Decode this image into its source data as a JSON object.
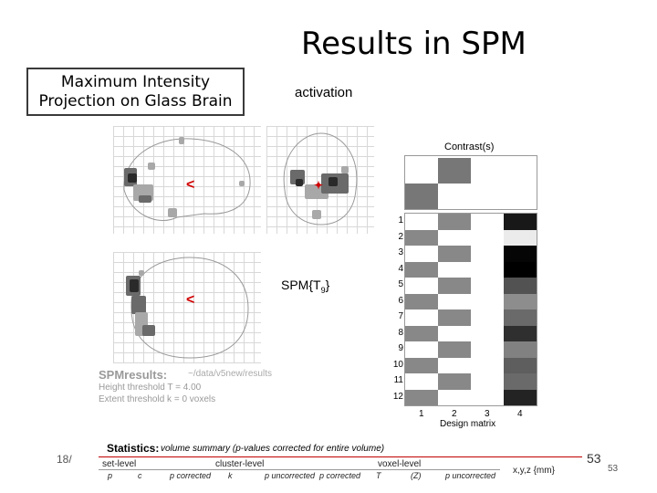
{
  "slide": {
    "title": "Results in SPM",
    "mip_label": "Maximum Intensity Projection on Glass Brain",
    "activation_label": "activation",
    "spm_t_label": "SPM{T",
    "spm_t_sub": "9",
    "spm_t_close": "}",
    "left_number": "18/",
    "page_number": "53",
    "page_number_small": "53"
  },
  "spm_results": {
    "title": "SPMresults:",
    "path": "~/data/v5new/results",
    "height_threshold": "Height threshold T = 4.00",
    "extent_threshold": "Extent threshold k = 0 voxels"
  },
  "contrast": {
    "label": "Contrast(s)",
    "weights": [
      -1,
      1,
      0,
      0
    ]
  },
  "design_matrix": {
    "title": "Design matrix",
    "row_labels": [
      "1",
      "2",
      "3",
      "4",
      "5",
      "6",
      "7",
      "8",
      "9",
      "10",
      "11",
      "12"
    ],
    "col_labels": [
      "1",
      "2",
      "3",
      "4"
    ],
    "col4_levels": [
      0.1,
      1.0,
      0.02,
      0.0,
      0.35,
      0.6,
      0.45,
      0.2,
      0.55,
      0.4,
      0.45,
      0.15
    ]
  },
  "statistics": {
    "title": "Statistics:",
    "subtitle": "volume summary (p-values corrected for entire volume)",
    "set_level": "set-level",
    "cluster_level": "cluster-level",
    "voxel_level": "voxel-level",
    "coords": "x,y,z {mm}",
    "headers": [
      "p",
      "c",
      "p corrected",
      "k",
      "p uncorrected",
      "p corrected",
      "T",
      "(Z)",
      "p uncorrected"
    ]
  }
}
